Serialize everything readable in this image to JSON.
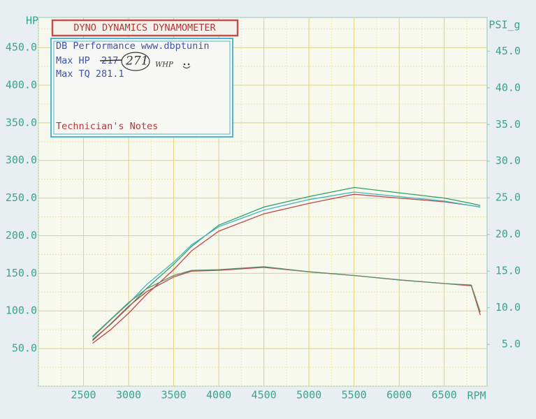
{
  "chart_data": {
    "type": "line",
    "title": "DYNO DYNAMICS DYNAMOMETER",
    "annotations": [
      "DB Performance www.dbptunin",
      "Max HP",
      "217",
      "271",
      "WHP",
      "Max TQ 281.1",
      "Technician's Notes"
    ],
    "x_label": "RPM",
    "y_label": "HP",
    "y2_label": "PSI_g",
    "x": [
      2600,
      2800,
      3000,
      3200,
      3500,
      3700,
      4000,
      4500,
      5000,
      5500,
      6000,
      6500,
      6800,
      6900
    ],
    "series": [
      {
        "color": "#c04848",
        "values": [
          57,
          75,
          97,
          122,
          155,
          180,
          206,
          229,
          243,
          255,
          250,
          245,
          240,
          238
        ]
      },
      {
        "color": "#2f9f6a",
        "values": [
          62,
          82,
          105,
          130,
          162,
          186,
          214,
          238,
          252,
          264,
          257,
          250,
          243,
          240
        ]
      },
      {
        "color": "#3bb7c8",
        "values": [
          65,
          88,
          110,
          135,
          165,
          188,
          212,
          234,
          248,
          258,
          252,
          246,
          240,
          238
        ]
      },
      {
        "color": "#c04848",
        "axis": "y2",
        "values": [
          5.5,
          7.8,
          10.2,
          12.2,
          14.2,
          15.0,
          15.1,
          15.5,
          14.9,
          14.4,
          13.8,
          13.3,
          13.0,
          9.0
        ]
      },
      {
        "color": "#5a8f6a",
        "axis": "y2",
        "values": [
          6.1,
          8.4,
          10.7,
          12.6,
          14.4,
          15.1,
          15.2,
          15.6,
          14.9,
          14.4,
          13.8,
          13.3,
          13.1,
          9.4
        ]
      }
    ],
    "xlim": [
      2000,
      6975
    ],
    "xticks": [
      2500,
      3000,
      3500,
      4000,
      4500,
      5000,
      5500,
      6000,
      6500
    ],
    "ylim": [
      0,
      490
    ],
    "yticks": [
      {
        "value": 50,
        "label": "50.0"
      },
      {
        "value": 100,
        "label": "100.0"
      },
      {
        "value": 150,
        "label": "150.0"
      },
      {
        "value": 200,
        "label": "200.0"
      },
      {
        "value": 250,
        "label": "250.0"
      },
      {
        "value": 300,
        "label": "300.0"
      },
      {
        "value": 350,
        "label": "350.0"
      },
      {
        "value": 400,
        "label": "400.0"
      },
      {
        "value": 450,
        "label": "450.0"
      }
    ],
    "y2lim": [
      -0.7,
      49.6
    ],
    "y2ticks": [
      {
        "value": 5,
        "label": "5.0"
      },
      {
        "value": 10,
        "label": "10.0"
      },
      {
        "value": 15,
        "label": "15.0"
      },
      {
        "value": 20,
        "label": "20.0"
      },
      {
        "value": 25,
        "label": "25.0"
      },
      {
        "value": 30,
        "label": "30.0"
      },
      {
        "value": 35,
        "label": "35.0"
      },
      {
        "value": 40,
        "label": "40.0"
      },
      {
        "value": 45,
        "label": "45.0"
      }
    ],
    "grid": true
  }
}
